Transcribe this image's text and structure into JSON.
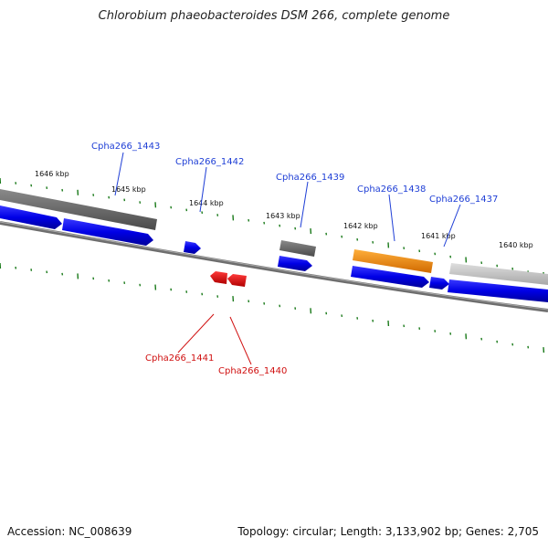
{
  "title": "Chlorobium phaeobacteroides DSM 266, complete genome",
  "accession": "Accession: NC_008639",
  "topology": "Topology: circular; Length: 3,133,902 bp; Genes: 2,705",
  "colors": {
    "tick": "#1a7a1a",
    "backbone": "#7a7a7a",
    "gene_blue": "#1010e0",
    "gene_red": "#e01010",
    "gene_orange": "#f08a00",
    "gene_gray_dark": "#6a6a6a",
    "gene_gray_light": "#c4c4c4",
    "label_blue": "#1f3fd6",
    "label_red": "#d01010"
  },
  "kbp_labels": [
    "1646 kbp",
    "1645 kbp",
    "1644 kbp",
    "1643 kbp",
    "1642 kbp",
    "1641 kbp",
    "1640 kbp"
  ],
  "gene_labels": {
    "g1443": "Cpha266_1443",
    "g1442": "Cpha266_1442",
    "g1439": "Cpha266_1439",
    "g1438": "Cpha266_1438",
    "g1437": "Cpha266_1437",
    "g1441": "Cpha266_1441",
    "g1440": "Cpha266_1440"
  }
}
